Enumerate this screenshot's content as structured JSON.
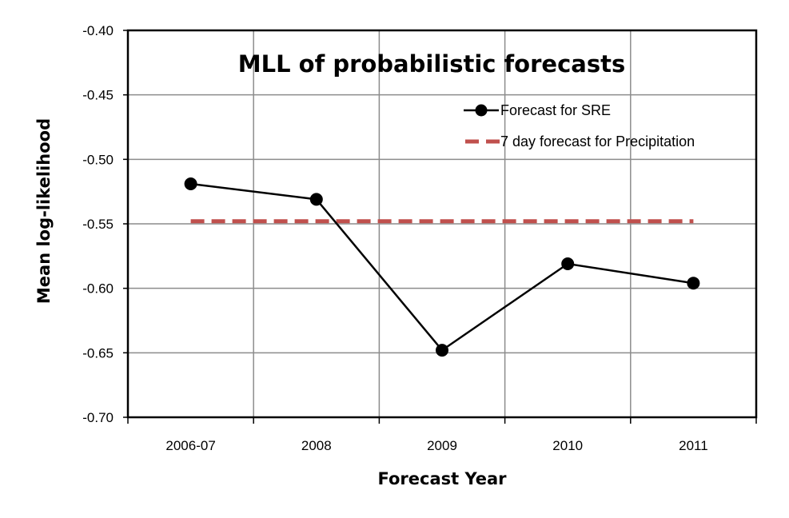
{
  "chart_data": {
    "type": "line",
    "title": "MLL of probabilistic forecasts",
    "xlabel": "Forecast Year",
    "ylabel": "Mean log-likelihood",
    "categories": [
      "2006-07",
      "2008",
      "2009",
      "2010",
      "2011"
    ],
    "ylim": [
      -0.7,
      -0.4
    ],
    "yticks": [
      "-0.40",
      "-0.45",
      "-0.50",
      "-0.55",
      "-0.60",
      "-0.65",
      "-0.70"
    ],
    "ytick_values": [
      -0.4,
      -0.45,
      -0.5,
      -0.55,
      -0.6,
      -0.65,
      -0.7
    ],
    "grid": true,
    "legend_position": "top-right",
    "series": [
      {
        "name": "Forecast for SRE",
        "style": "solid line with circle markers",
        "color": "#000000",
        "values": [
          -0.519,
          -0.531,
          -0.648,
          -0.581,
          -0.596
        ]
      },
      {
        "name": "7 day forecast for Precipitation",
        "style": "dashed",
        "color": "#C0504D",
        "values": [
          -0.548,
          -0.548,
          -0.548,
          -0.548,
          -0.548
        ]
      }
    ]
  }
}
